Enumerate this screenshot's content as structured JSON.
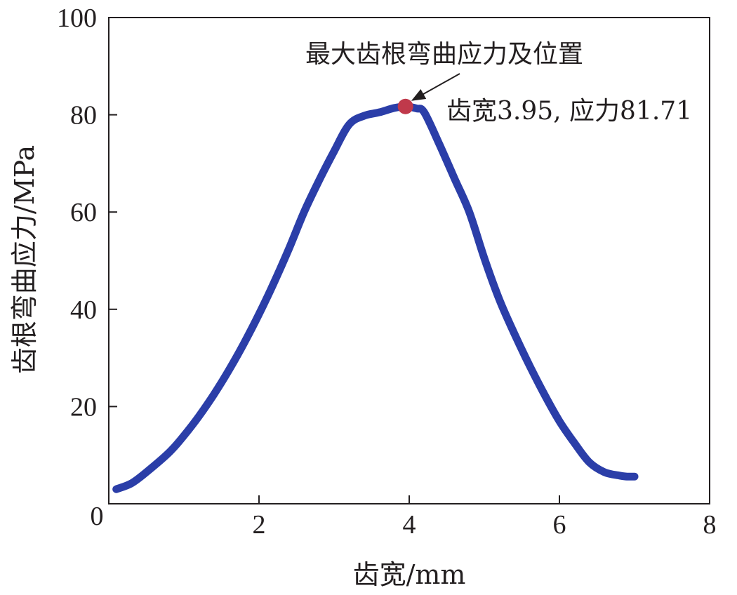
{
  "chart_data": {
    "type": "line",
    "title": "",
    "xlabel": "齿宽/mm",
    "ylabel": "齿根弯曲应力/MPa",
    "xlim": [
      0,
      8
    ],
    "ylim": [
      0,
      100
    ],
    "x_ticks": [
      0,
      2,
      4,
      6,
      8
    ],
    "y_ticks": [
      20,
      40,
      60,
      80,
      100
    ],
    "x_tick_labels": [
      "2",
      "4",
      "6",
      "8"
    ],
    "y_tick_labels": [
      "20",
      "40",
      "60",
      "80",
      "100"
    ],
    "origin_label": "0",
    "grid": false,
    "series": [
      {
        "color": "#2b3ea8",
        "x": [
          0.1,
          0.3,
          0.5,
          0.8,
          1.0,
          1.2,
          1.4,
          1.6,
          1.8,
          2.0,
          2.2,
          2.4,
          2.6,
          2.8,
          3.0,
          3.2,
          3.4,
          3.6,
          3.8,
          3.95,
          4.1,
          4.2,
          4.4,
          4.6,
          4.8,
          5.0,
          5.2,
          5.4,
          5.6,
          5.8,
          6.0,
          6.2,
          6.4,
          6.6,
          6.8,
          6.9,
          7.0
        ],
        "y": [
          3.0,
          4.2,
          6.5,
          10.5,
          14.0,
          18.0,
          22.5,
          27.5,
          33.0,
          39.0,
          45.5,
          52.5,
          60.0,
          66.5,
          72.5,
          78.0,
          79.8,
          80.5,
          81.4,
          81.71,
          81.3,
          80.5,
          74.0,
          67.0,
          60.0,
          50.5,
          42.0,
          35.0,
          28.5,
          22.5,
          17.0,
          12.5,
          8.5,
          6.5,
          5.8,
          5.6,
          5.6
        ]
      }
    ],
    "highlight_point": {
      "x": 3.95,
      "y": 81.71,
      "color": "#c0394b",
      "label_title": "最大齿根弯曲应力及位置",
      "label_value": "齿宽3.95, 应力81.71"
    }
  }
}
